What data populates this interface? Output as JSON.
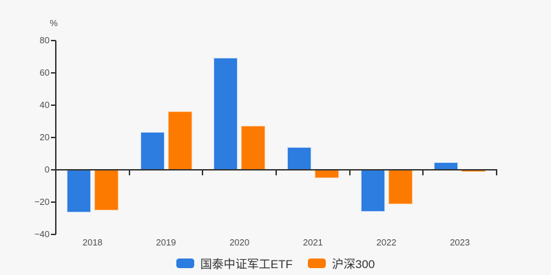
{
  "colors": {
    "background": "#f7f7f7",
    "axis": "#333333",
    "tick_label": "#4d4d4d",
    "legend_text": "#333333"
  },
  "chart_data": {
    "type": "bar",
    "title": "",
    "ylabel": "%",
    "xlabel": "",
    "ylim": [
      -40,
      80
    ],
    "yticks": [
      80,
      60,
      40,
      20,
      0,
      -20,
      -40
    ],
    "grid": false,
    "legend_position": "bottom",
    "categories": [
      "2018",
      "2019",
      "2020",
      "2021",
      "2022",
      "2023"
    ],
    "series": [
      {
        "name": "国泰中证军工ETF",
        "color": "#2D7CDF",
        "border": "#c3daf5",
        "values": [
          -26.4,
          23.4,
          69.4,
          14.0,
          -25.8,
          4.8
        ]
      },
      {
        "name": "沪深300",
        "color": "#FD7A01",
        "border": "#ffc38a",
        "values": [
          -25.3,
          36.2,
          27.2,
          -5.2,
          -21.3,
          -1.2
        ]
      }
    ]
  }
}
